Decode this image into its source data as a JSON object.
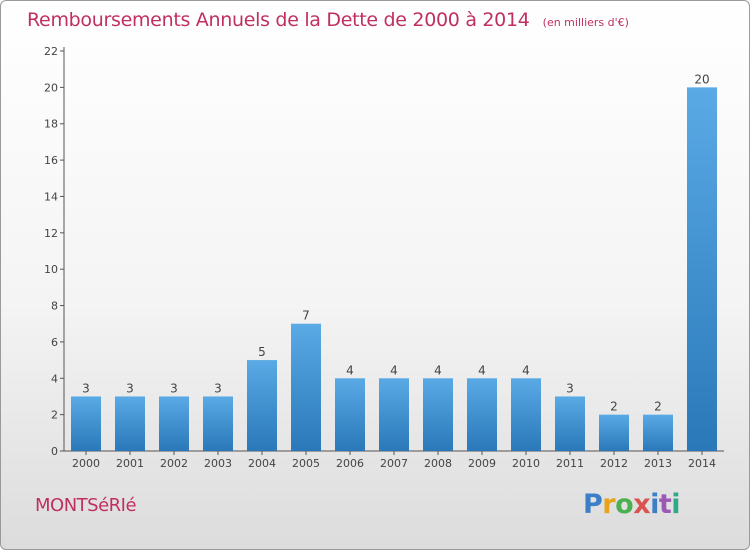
{
  "chart_data": {
    "type": "bar",
    "title": "Remboursements Annuels de la Dette de 2000 à 2014",
    "unit_label": "(en milliers d'€)",
    "categories": [
      "2000",
      "2001",
      "2002",
      "2003",
      "2004",
      "2005",
      "2006",
      "2007",
      "2008",
      "2009",
      "2010",
      "2011",
      "2012",
      "2013",
      "2014"
    ],
    "values": [
      3,
      3,
      3,
      3,
      5,
      7,
      4,
      4,
      4,
      4,
      4,
      3,
      2,
      2,
      20
    ],
    "ylim": [
      0,
      22
    ],
    "yticks": [
      0,
      2,
      4,
      6,
      8,
      10,
      12,
      14,
      16,
      18,
      20,
      22
    ],
    "xlabel": "",
    "ylabel": "",
    "grid": false,
    "bar_color": "#5aaae6",
    "bar_color_dark": "#2a78b8"
  },
  "commune": "MONTSéRIé",
  "logo": {
    "letters": [
      "P",
      "r",
      "o",
      "x",
      "i",
      "t",
      "i"
    ]
  },
  "colors": {
    "title": "#c0305f",
    "axis": "#555555"
  }
}
